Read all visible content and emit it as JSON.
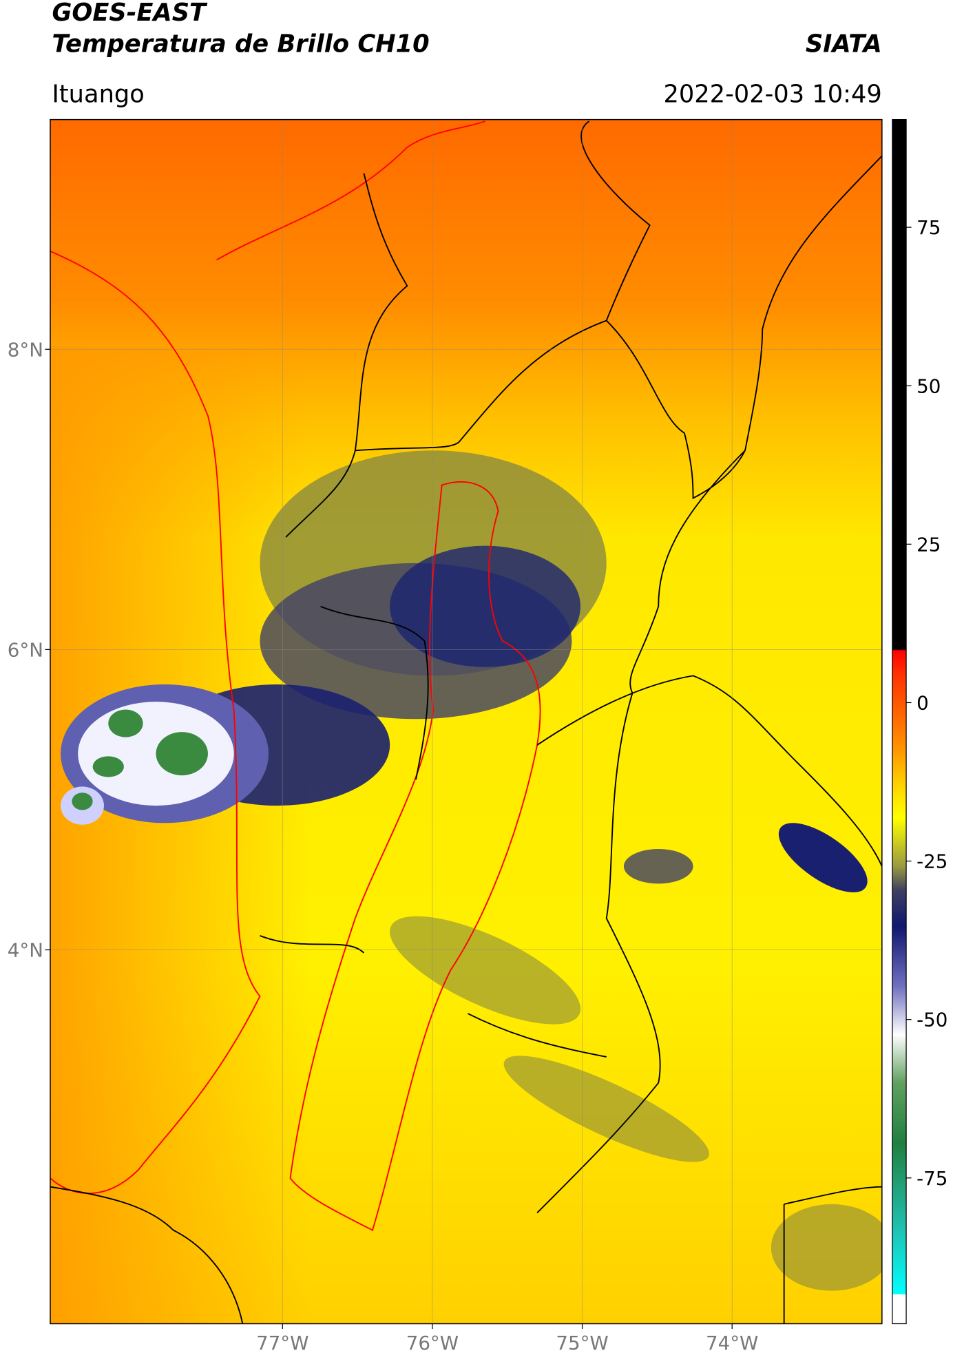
{
  "header": {
    "title_line1": "GOES-EAST",
    "title_line2": "Temperatura de Brillo CH10",
    "source": "SIATA",
    "location": "Ituango",
    "datetime": "2022-02-03 10:49"
  },
  "map": {
    "xlim": [
      -78.55,
      -73.0
    ],
    "ylim": [
      1.51,
      9.53
    ],
    "xticks": [
      {
        "value": -77,
        "label": "77°W"
      },
      {
        "value": -76,
        "label": "76°W"
      },
      {
        "value": -75,
        "label": "75°W"
      },
      {
        "value": -74,
        "label": "74°W"
      }
    ],
    "yticks": [
      {
        "value": 8,
        "label": "8°N"
      },
      {
        "value": 6,
        "label": "6°N"
      },
      {
        "value": 4,
        "label": "4°N"
      }
    ],
    "grid": true
  },
  "colorbar": {
    "lim": [
      -98,
      92
    ],
    "ticks": [
      75,
      50,
      25,
      0,
      -25,
      -50,
      -75
    ]
  }
}
